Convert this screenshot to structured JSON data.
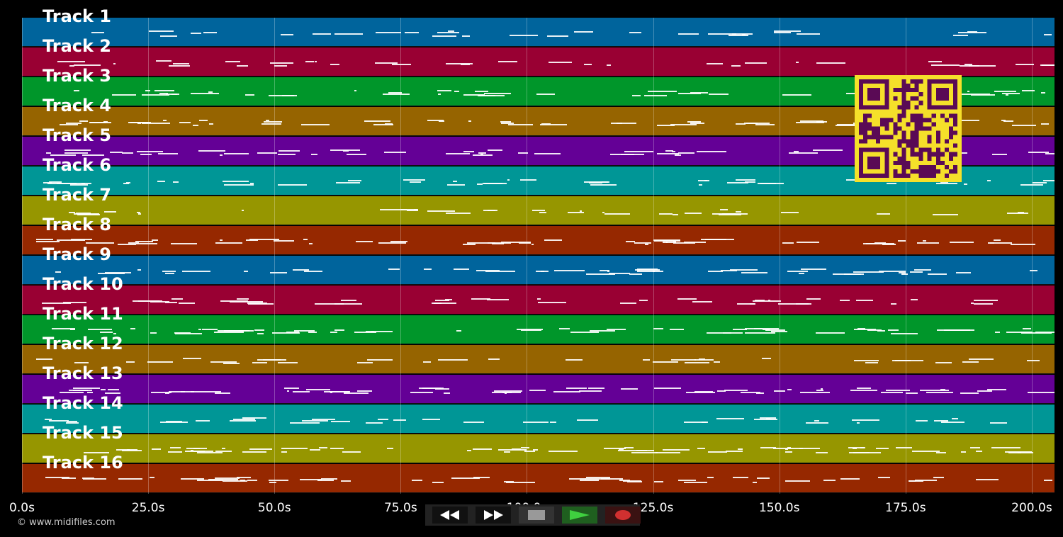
{
  "tracks": [
    {
      "label": "Track 1",
      "color": "#00649c"
    },
    {
      "label": "Track 2",
      "color": "#990033"
    },
    {
      "label": "Track 3",
      "color": "#00962a"
    },
    {
      "label": "Track 4",
      "color": "#966400"
    },
    {
      "label": "Track 5",
      "color": "#640096"
    },
    {
      "label": "Track 6",
      "color": "#009696"
    },
    {
      "label": "Track 7",
      "color": "#969600"
    },
    {
      "label": "Track 8",
      "color": "#962800"
    },
    {
      "label": "Track 9",
      "color": "#00649c"
    },
    {
      "label": "Track 10",
      "color": "#990033"
    },
    {
      "label": "Track 11",
      "color": "#00962a"
    },
    {
      "label": "Track 12",
      "color": "#966400"
    },
    {
      "label": "Track 13",
      "color": "#640096"
    },
    {
      "label": "Track 14",
      "color": "#009696"
    },
    {
      "label": "Track 15",
      "color": "#969600"
    },
    {
      "label": "Track 16",
      "color": "#962800"
    }
  ],
  "timeline": {
    "ticks": [
      "0.0s",
      "25.0s",
      "50.0s",
      "75.0s",
      "100.0s",
      "125.0s",
      "150.0s",
      "175.0s",
      "200.0s"
    ],
    "tick_seconds": [
      0,
      25,
      50,
      75,
      100,
      125,
      150,
      175,
      200
    ],
    "max_seconds": 204.5
  },
  "copyright": "© www.midifiles.com",
  "transport": {
    "rewind_icon": "rewind-icon",
    "forward_icon": "fast-forward-icon",
    "stop_icon": "stop-icon",
    "play_icon": "play-icon",
    "record_icon": "record-icon"
  },
  "qr": {
    "fg": "#5a0a55",
    "bg": "#f5e02a"
  }
}
